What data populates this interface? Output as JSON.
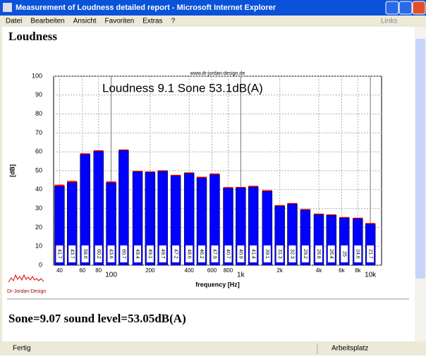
{
  "window": {
    "title": "Measurement of Loudness detailed report - Microsoft Internet Explorer"
  },
  "menu": [
    "Datei",
    "Bearbeiten",
    "Ansicht",
    "Favoriten",
    "Extras",
    "?"
  ],
  "links": "Links",
  "page": {
    "heading": "Loudness",
    "logo": "Dr-Jordan-Design",
    "result": "Sone=9.07 sound level=53.05dB(A)"
  },
  "chart_data": {
    "type": "bar",
    "title": "Loudness 9.1 Sone 53.1dB(A)",
    "watermark": "www.dr-jordan-design.de",
    "x_label": "frequency [Hz]",
    "y_label": "[dB]",
    "x": [
      40,
      50,
      63,
      80,
      100,
      125,
      160,
      200,
      250,
      315,
      400,
      500,
      630,
      800,
      1000,
      1250,
      1600,
      2000,
      2500,
      3150,
      4000,
      5000,
      6300,
      8000,
      10000
    ],
    "values": [
      41.7,
      43.7,
      58.6,
      60.2,
      43.6,
      60.7,
      49.4,
      49.1,
      49.7,
      47.2,
      48.6,
      46.2,
      47.9,
      40.7,
      40.9,
      41.4,
      39.1,
      31.3,
      32.3,
      29.2,
      26.8,
      26.4,
      25.0,
      24.6,
      21.7
    ],
    "cap_values": [
      42.6,
      44.6,
      59.2,
      60.8,
      44.3,
      61.2,
      49.9,
      49.6,
      50.2,
      47.8,
      49.1,
      46.8,
      48.5,
      41.3,
      41.4,
      42.0,
      39.7,
      31.8,
      32.9,
      29.7,
      27.3,
      26.9,
      25.5,
      25.1,
      22.3
    ],
    "color": "#0000ff",
    "cap_color": "#ff0000",
    "xscale": "log",
    "xlim": [
      36,
      12200
    ],
    "xticks": [
      40,
      60,
      80,
      100,
      200,
      400,
      600,
      800,
      {
        "value": 1000,
        "label": "1k"
      },
      {
        "value": 2000,
        "label": "2k"
      },
      {
        "value": 4000,
        "label": "4k"
      },
      {
        "value": 6000,
        "label": "6k"
      },
      {
        "value": 8000,
        "label": "8k"
      },
      {
        "value": 10000,
        "label": "10k"
      }
    ],
    "ylim": [
      0,
      100
    ],
    "yticks": [
      0,
      10,
      20,
      30,
      40,
      50,
      60,
      70,
      80,
      90,
      100
    ],
    "grid": true
  },
  "status": {
    "left": "Fertig",
    "right": "Arbeitsplatz"
  }
}
